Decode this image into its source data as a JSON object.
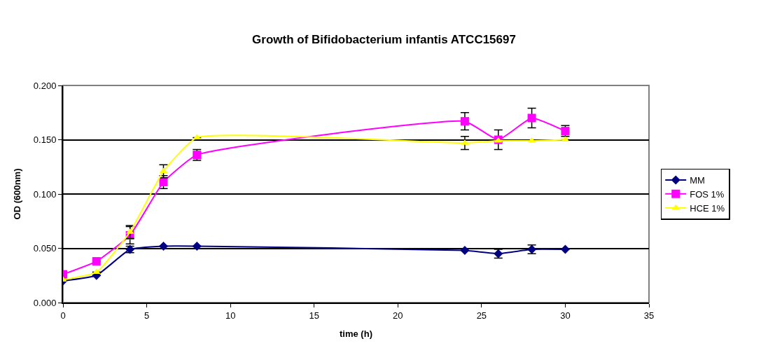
{
  "chart_data": {
    "type": "line",
    "title": "Growth of Bifidobacterium infantis ATCC15697",
    "xlabel": "time (h)",
    "ylabel": "OD (600nm)",
    "x": [
      0,
      2,
      4,
      6,
      8,
      24,
      26,
      28,
      30
    ],
    "series": [
      {
        "name": "MM",
        "color": "#000080",
        "marker": "diamond",
        "values": [
          0.02,
          0.025,
          0.049,
          0.052,
          0.052,
          0.048,
          0.045,
          0.049,
          0.049
        ],
        "errors": [
          null,
          null,
          0.003,
          null,
          null,
          null,
          0.004,
          0.004,
          null
        ]
      },
      {
        "name": "FOS 1%",
        "color": "#ff00ff",
        "marker": "square",
        "values": [
          0.026,
          0.038,
          0.062,
          0.111,
          0.136,
          0.167,
          0.15,
          0.17,
          0.158
        ],
        "errors": [
          null,
          null,
          0.008,
          0.006,
          0.005,
          0.008,
          0.009,
          0.009,
          0.005
        ]
      },
      {
        "name": "HCE 1%",
        "color": "#ffff00",
        "marker": "triangle",
        "values": [
          0.021,
          0.028,
          0.065,
          0.121,
          0.152,
          0.147,
          0.149,
          0.149,
          0.15
        ],
        "errors": [
          null,
          null,
          0.006,
          0.006,
          null,
          0.006,
          null,
          null,
          null
        ]
      }
    ],
    "xlim": [
      0,
      35
    ],
    "xticks": [
      0,
      5,
      10,
      15,
      20,
      25,
      30,
      35
    ],
    "ylim": [
      0,
      0.2
    ],
    "yticks": [
      {
        "value": 0,
        "label": "0.000"
      },
      {
        "value": 0.05,
        "label": "0.050"
      },
      {
        "value": 0.1,
        "label": "0.100"
      },
      {
        "value": 0.15,
        "label": "0.150"
      },
      {
        "value": 0.2,
        "label": "0.200"
      }
    ],
    "grid": "y",
    "legend": "right"
  }
}
